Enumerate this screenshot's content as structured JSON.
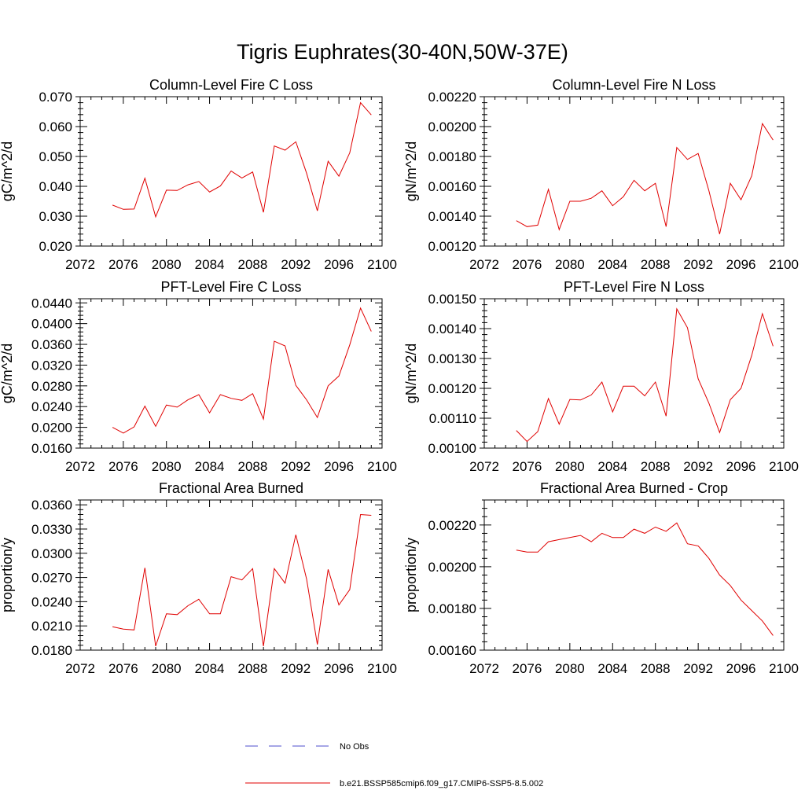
{
  "title": "Tigris Euphrates(30-40N,50W-37E)",
  "x_ticks": [
    "2072",
    "2076",
    "2080",
    "2084",
    "2088",
    "2092",
    "2096",
    "2100"
  ],
  "years": [
    2075,
    2076,
    2077,
    2078,
    2079,
    2080,
    2081,
    2082,
    2083,
    2084,
    2085,
    2086,
    2087,
    2088,
    2089,
    2090,
    2091,
    2092,
    2093,
    2094,
    2095,
    2096,
    2097,
    2098,
    2099
  ],
  "legend": {
    "items": [
      {
        "label": "No Obs",
        "color": "#4d4dcc",
        "dash": "dashed"
      },
      {
        "label": "b.e21.BSSP585cmip6.f09_g17.CMIP6-SSP5-8.5.002",
        "color": "#e00000",
        "dash": "solid"
      }
    ]
  },
  "chart_data": [
    {
      "type": "line",
      "title": "Column-Level Fire C Loss",
      "ylabel": "gC/m^2/d",
      "xlim": [
        2072,
        2100
      ],
      "ylim": [
        0.02,
        0.07
      ],
      "yticks": [
        "0.020",
        "0.030",
        "0.040",
        "0.050",
        "0.060",
        "0.070"
      ],
      "series": [
        {
          "color": "#e00000",
          "values": [
            0.0337,
            0.0323,
            0.0324,
            0.0427,
            0.0298,
            0.0387,
            0.0386,
            0.0405,
            0.0416,
            0.0381,
            0.0401,
            0.0451,
            0.0428,
            0.0448,
            0.0313,
            0.0535,
            0.0521,
            0.0549,
            0.0444,
            0.0318,
            0.0484,
            0.0434,
            0.0512,
            0.068,
            0.0639
          ]
        }
      ]
    },
    {
      "type": "line",
      "title": "Column-Level Fire N Loss",
      "ylabel": "gN/m^2/d",
      "xlim": [
        2072,
        2100
      ],
      "ylim": [
        0.0012,
        0.0022
      ],
      "yticks": [
        "0.00120",
        "0.00140",
        "0.00160",
        "0.00180",
        "0.00200",
        "0.00220"
      ],
      "series": [
        {
          "color": "#e00000",
          "values": [
            0.00137,
            0.00133,
            0.00134,
            0.00158,
            0.00131,
            0.0015,
            0.0015,
            0.00152,
            0.00157,
            0.00147,
            0.00153,
            0.00164,
            0.00157,
            0.00162,
            0.00133,
            0.00186,
            0.00178,
            0.00182,
            0.00157,
            0.00128,
            0.00162,
            0.00151,
            0.00167,
            0.00202,
            0.00191
          ]
        }
      ]
    },
    {
      "type": "line",
      "title": "PFT-Level Fire C Loss",
      "ylabel": "gC/m^2/d",
      "xlim": [
        2072,
        2100
      ],
      "ylim": [
        0.016,
        0.0448
      ],
      "yticks": [
        "0.0160",
        "0.0200",
        "0.0240",
        "0.0280",
        "0.0320",
        "0.0360",
        "0.0400",
        "0.0440"
      ],
      "series": [
        {
          "color": "#e00000",
          "values": [
            0.02,
            0.0189,
            0.0201,
            0.0241,
            0.0202,
            0.0243,
            0.0239,
            0.0253,
            0.0263,
            0.0228,
            0.0263,
            0.0256,
            0.0252,
            0.0265,
            0.0216,
            0.0366,
            0.0357,
            0.0281,
            0.0253,
            0.0219,
            0.028,
            0.0299,
            0.0359,
            0.043,
            0.0385
          ]
        }
      ]
    },
    {
      "type": "line",
      "title": "PFT-Level Fire N Loss",
      "ylabel": "gN/m^2/d",
      "xlim": [
        2072,
        2100
      ],
      "ylim": [
        0.001,
        0.0015
      ],
      "yticks": [
        "0.00100",
        "0.00110",
        "0.00120",
        "0.00130",
        "0.00140",
        "0.00150"
      ],
      "series": [
        {
          "color": "#e00000",
          "values": [
            0.001059,
            0.001022,
            0.001055,
            0.001166,
            0.00108,
            0.001163,
            0.001161,
            0.001178,
            0.001221,
            0.001121,
            0.001207,
            0.001207,
            0.001175,
            0.001221,
            0.001107,
            0.001466,
            0.001403,
            0.001232,
            0.00115,
            0.001052,
            0.001162,
            0.0012,
            0.00131,
            0.00145,
            0.001341
          ]
        }
      ]
    },
    {
      "type": "line",
      "title": "Fractional Area Burned",
      "ylabel": "proportion/y",
      "xlim": [
        2072,
        2100
      ],
      "ylim": [
        0.018,
        0.0366
      ],
      "yticks": [
        "0.0180",
        "0.0210",
        "0.0240",
        "0.0270",
        "0.0300",
        "0.0330",
        "0.0360"
      ],
      "series": [
        {
          "color": "#e00000",
          "values": [
            0.0209,
            0.0206,
            0.0205,
            0.0282,
            0.0185,
            0.0225,
            0.0224,
            0.0235,
            0.0243,
            0.0225,
            0.0225,
            0.0271,
            0.0267,
            0.0281,
            0.0185,
            0.0281,
            0.0263,
            0.0323,
            0.0268,
            0.0187,
            0.028,
            0.0236,
            0.0255,
            0.0348,
            0.0347
          ]
        }
      ]
    },
    {
      "type": "line",
      "title": "Fractional Area Burned - Crop",
      "ylabel": "proportion/y",
      "xlim": [
        2072,
        2100
      ],
      "ylim": [
        0.0016,
        0.00232
      ],
      "yticks": [
        "0.00160",
        "0.00180",
        "0.00200",
        "0.00220"
      ],
      "series": [
        {
          "color": "#e00000",
          "values": [
            0.00208,
            0.00207,
            0.00207,
            0.00212,
            0.00213,
            0.00214,
            0.00215,
            0.00212,
            0.00216,
            0.00214,
            0.00214,
            0.00218,
            0.00216,
            0.00219,
            0.00217,
            0.00221,
            0.00211,
            0.0021,
            0.00204,
            0.00196,
            0.00191,
            0.00184,
            0.00179,
            0.00174,
            0.00167
          ]
        }
      ]
    }
  ]
}
